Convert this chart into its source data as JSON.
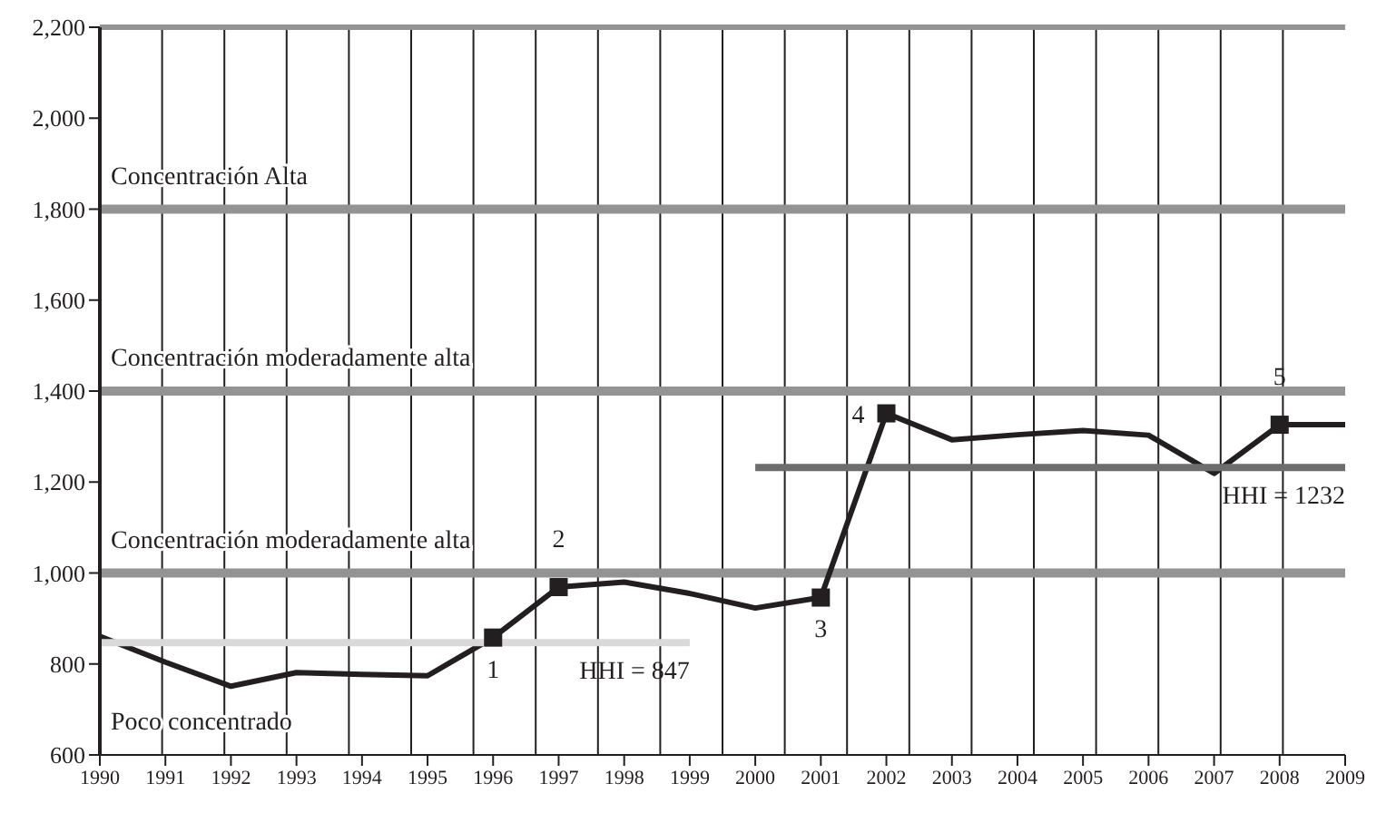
{
  "chart_data": {
    "type": "line",
    "categories": [
      "1990",
      "1991",
      "1992",
      "1993",
      "1994",
      "1995",
      "1996",
      "1997",
      "1998",
      "1999",
      "2000",
      "2001",
      "2002",
      "2003",
      "2004",
      "2005",
      "2006",
      "2007",
      "2008",
      "2009"
    ],
    "series": [
      {
        "color": "#231f20",
        "values": [
          861,
          804,
          751,
          781,
          777,
          774,
          858,
          969,
          980,
          955,
          923,
          946,
          1351,
          1293,
          1304,
          1313,
          1303,
          1219,
          1326,
          1326
        ]
      },
      {
        "name": "HHI = 847",
        "color": "#d9d9d9",
        "values": [
          847,
          847,
          847,
          847,
          847,
          847,
          847,
          847,
          847,
          847,
          null,
          null,
          null,
          null,
          null,
          null,
          null,
          null,
          null,
          null
        ]
      },
      {
        "name": "HHI = 1232",
        "color": "#6d6d6d",
        "values": [
          null,
          null,
          null,
          null,
          null,
          null,
          null,
          null,
          null,
          null,
          1232,
          1232,
          1232,
          1232,
          1232,
          1232,
          1232,
          1232,
          1232,
          1232
        ]
      },
      {
        "type": "scatter",
        "marker": "square",
        "color": "#231f20",
        "values": [
          null,
          null,
          null,
          null,
          null,
          null,
          858,
          969,
          null,
          null,
          null,
          946,
          1351,
          null,
          null,
          null,
          null,
          null,
          1326,
          null
        ]
      }
    ],
    "ylim": [
      600,
      2200
    ],
    "yticks": [
      600,
      800,
      {
        "value": 1000,
        "label": "1,000"
      },
      {
        "value": 1200,
        "label": "1,200"
      },
      {
        "value": 1400,
        "label": "1,400"
      },
      {
        "value": 1600,
        "label": "1,600"
      },
      {
        "value": 1800,
        "label": "1,800"
      },
      {
        "value": 2000,
        "label": "2,000"
      },
      {
        "value": 2200,
        "label": "2,200"
      }
    ],
    "grid": "x",
    "ref_lines": [
      {
        "axis": "y",
        "value": 1000,
        "color": "#939393"
      },
      {
        "axis": "y",
        "value": 1400,
        "color": "#939393"
      },
      {
        "axis": "y",
        "value": 1800,
        "color": "#939393"
      }
    ],
    "annotations": [
      "Concentración Alta",
      "Concentración moderadamente alta",
      "Concentración moderadamente alta",
      "Poco concentrado",
      {
        "text": "1",
        "x": "1996",
        "y": 858
      },
      {
        "text": "2",
        "x": "1997",
        "y": 969
      },
      {
        "text": "3",
        "x": "2001",
        "y": 946
      },
      {
        "text": "4",
        "x": "2002",
        "y": 1351
      },
      {
        "text": "5",
        "x": "2008",
        "y": 1326
      }
    ]
  }
}
